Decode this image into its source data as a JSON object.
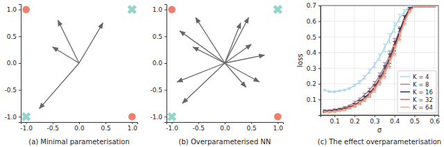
{
  "chart_data": [
    {
      "type": "scatter",
      "title": "(a) Minimal parameterisation",
      "xlim": [
        -1.1,
        1.1
      ],
      "ylim": [
        -1.1,
        1.1
      ],
      "xticks": [
        {
          "value": -1,
          "label": "-1.0"
        },
        {
          "value": -0.5,
          "label": "-0.5"
        },
        {
          "value": 0,
          "label": "0.0"
        },
        {
          "value": 0.5,
          "label": "0.5"
        },
        {
          "value": 1,
          "label": "1.0"
        }
      ],
      "yticks": [
        {
          "value": -1,
          "label": "-1.0"
        },
        {
          "value": -0.5,
          "label": "-0.5"
        },
        {
          "value": 0,
          "label": "0.0"
        },
        {
          "value": 0.5,
          "label": "0.5"
        },
        {
          "value": 1,
          "label": "1.0"
        }
      ],
      "series": [
        {
          "type": "scatter",
          "marker": "circle",
          "color": "#f07f6e",
          "x": [
            -1,
            1
          ],
          "values": [
            1,
            -1
          ]
        },
        {
          "type": "scatter",
          "marker": "x",
          "color": "#93d5c9",
          "x": [
            1,
            -1
          ],
          "values": [
            1,
            -1
          ]
        },
        {
          "type": "arrow",
          "color": "#666666",
          "x": [
            -0.4,
            0.45,
            -0.5,
            -0.75
          ],
          "values": [
            0.8,
            0.75,
            0.3,
            -0.85
          ]
        }
      ]
    },
    {
      "type": "scatter",
      "title": "(b) Overparameterised NN",
      "xlim": [
        -1.1,
        1.1
      ],
      "ylim": [
        -1.1,
        1.1
      ],
      "xticks": [
        {
          "value": -1,
          "label": "-1.0"
        },
        {
          "value": -0.5,
          "label": "-0.5"
        },
        {
          "value": 0,
          "label": "0.0"
        },
        {
          "value": 0.5,
          "label": "0.5"
        },
        {
          "value": 1,
          "label": "1.0"
        }
      ],
      "yticks": [
        {
          "value": -1,
          "label": "-1.0"
        },
        {
          "value": -0.5,
          "label": "-0.5"
        },
        {
          "value": 0,
          "label": "0.0"
        },
        {
          "value": 0.5,
          "label": "0.5"
        },
        {
          "value": 1,
          "label": "1.0"
        }
      ],
      "series": [
        {
          "type": "scatter",
          "marker": "circle",
          "color": "#f07f6e",
          "x": [
            -1,
            1
          ],
          "values": [
            1,
            -1
          ]
        },
        {
          "type": "scatter",
          "marker": "x",
          "color": "#93d5c9",
          "x": [
            1,
            -1
          ],
          "values": [
            1,
            -1
          ]
        },
        {
          "type": "arrow",
          "color": "#666666",
          "x": [
            -0.55,
            -0.85,
            -0.6,
            -0.9,
            -0.8,
            0.3,
            0.45,
            0.5,
            0.75,
            0.65,
            0.4
          ],
          "values": [
            0.85,
            0.6,
            0.3,
            -0.35,
            -0.75,
            0.75,
            0.85,
            0.35,
            0.15,
            -0.35,
            -0.45
          ]
        }
      ]
    },
    {
      "type": "line",
      "title": "(c) The effect overparameterisation",
      "x_label": "σ",
      "y_label": "loss",
      "xlim": [
        0.03,
        0.62
      ],
      "ylim": [
        0,
        0.7
      ],
      "xticks": [
        0.1,
        0.2,
        0.3,
        0.4,
        0.5,
        0.6
      ],
      "yticks": [
        0.1,
        0.2,
        0.3,
        0.4,
        0.5,
        0.6,
        0.7
      ],
      "grid": true,
      "legend": "lower right",
      "x": [
        0.05,
        0.075,
        0.1,
        0.125,
        0.15,
        0.175,
        0.2,
        0.225,
        0.25,
        0.275,
        0.3,
        0.325,
        0.35,
        0.375,
        0.4,
        0.425,
        0.45,
        0.475,
        0.5,
        0.525,
        0.55,
        0.575,
        0.6
      ],
      "series": [
        {
          "name": "K = 4",
          "color": "#a9d4e8",
          "values": [
            0.16,
            0.15,
            0.15,
            0.155,
            0.16,
            0.17,
            0.19,
            0.21,
            0.24,
            0.28,
            0.32,
            0.37,
            0.43,
            0.49,
            0.56,
            0.62,
            0.66,
            0.69,
            0.693,
            0.693,
            0.693,
            0.693,
            0.693
          ],
          "errors": [
            0.005,
            0.005,
            0.005,
            0.005,
            0.005,
            0.005,
            0.008,
            0.01,
            0.01,
            0.012,
            0.015,
            0.02,
            0.025,
            0.03,
            0.03,
            0.025,
            0.015,
            0.008,
            0,
            0,
            0,
            0,
            0
          ]
        },
        {
          "name": "K = 8",
          "color": "#a57f94",
          "values": [
            0.03,
            0.03,
            0.035,
            0.04,
            0.05,
            0.06,
            0.08,
            0.1,
            0.13,
            0.16,
            0.2,
            0.25,
            0.31,
            0.38,
            0.46,
            0.54,
            0.62,
            0.68,
            0.693,
            0.693,
            0.693,
            0.693,
            0.693
          ],
          "errors": [
            0.005,
            0.005,
            0.005,
            0.005,
            0.005,
            0.005,
            0.008,
            0.01,
            0.01,
            0.012,
            0.015,
            0.02,
            0.025,
            0.03,
            0.03,
            0.025,
            0.015,
            0.008,
            0,
            0,
            0,
            0,
            0
          ]
        },
        {
          "name": "K = 16",
          "color": "#27304d",
          "values": [
            0.025,
            0.025,
            0.03,
            0.035,
            0.04,
            0.05,
            0.065,
            0.085,
            0.11,
            0.14,
            0.18,
            0.23,
            0.29,
            0.36,
            0.44,
            0.53,
            0.62,
            0.68,
            0.693,
            0.693,
            0.693,
            0.693,
            0.693
          ],
          "errors": [
            0.005,
            0.005,
            0.005,
            0.005,
            0.005,
            0.005,
            0.008,
            0.01,
            0.01,
            0.012,
            0.015,
            0.02,
            0.025,
            0.03,
            0.03,
            0.025,
            0.015,
            0.008,
            0,
            0,
            0,
            0,
            0
          ]
        },
        {
          "name": "K = 32",
          "color": "#d9644c",
          "values": [
            0.02,
            0.02,
            0.025,
            0.03,
            0.035,
            0.045,
            0.06,
            0.08,
            0.1,
            0.13,
            0.17,
            0.22,
            0.27,
            0.34,
            0.42,
            0.51,
            0.6,
            0.67,
            0.693,
            0.693,
            0.693,
            0.693,
            0.693
          ],
          "errors": [
            0.005,
            0.005,
            0.005,
            0.005,
            0.005,
            0.005,
            0.008,
            0.01,
            0.01,
            0.012,
            0.015,
            0.02,
            0.025,
            0.03,
            0.03,
            0.025,
            0.015,
            0.008,
            0,
            0,
            0,
            0,
            0
          ]
        },
        {
          "name": "K = 64",
          "color": "#f2a990",
          "values": [
            0.02,
            0.02,
            0.022,
            0.027,
            0.033,
            0.043,
            0.057,
            0.075,
            0.095,
            0.125,
            0.16,
            0.21,
            0.26,
            0.33,
            0.41,
            0.5,
            0.59,
            0.66,
            0.693,
            0.693,
            0.693,
            0.693,
            0.693
          ],
          "errors": [
            0.005,
            0.005,
            0.005,
            0.005,
            0.005,
            0.005,
            0.008,
            0.01,
            0.01,
            0.012,
            0.015,
            0.02,
            0.025,
            0.03,
            0.03,
            0.025,
            0.015,
            0.008,
            0,
            0,
            0,
            0,
            0
          ]
        }
      ]
    }
  ]
}
